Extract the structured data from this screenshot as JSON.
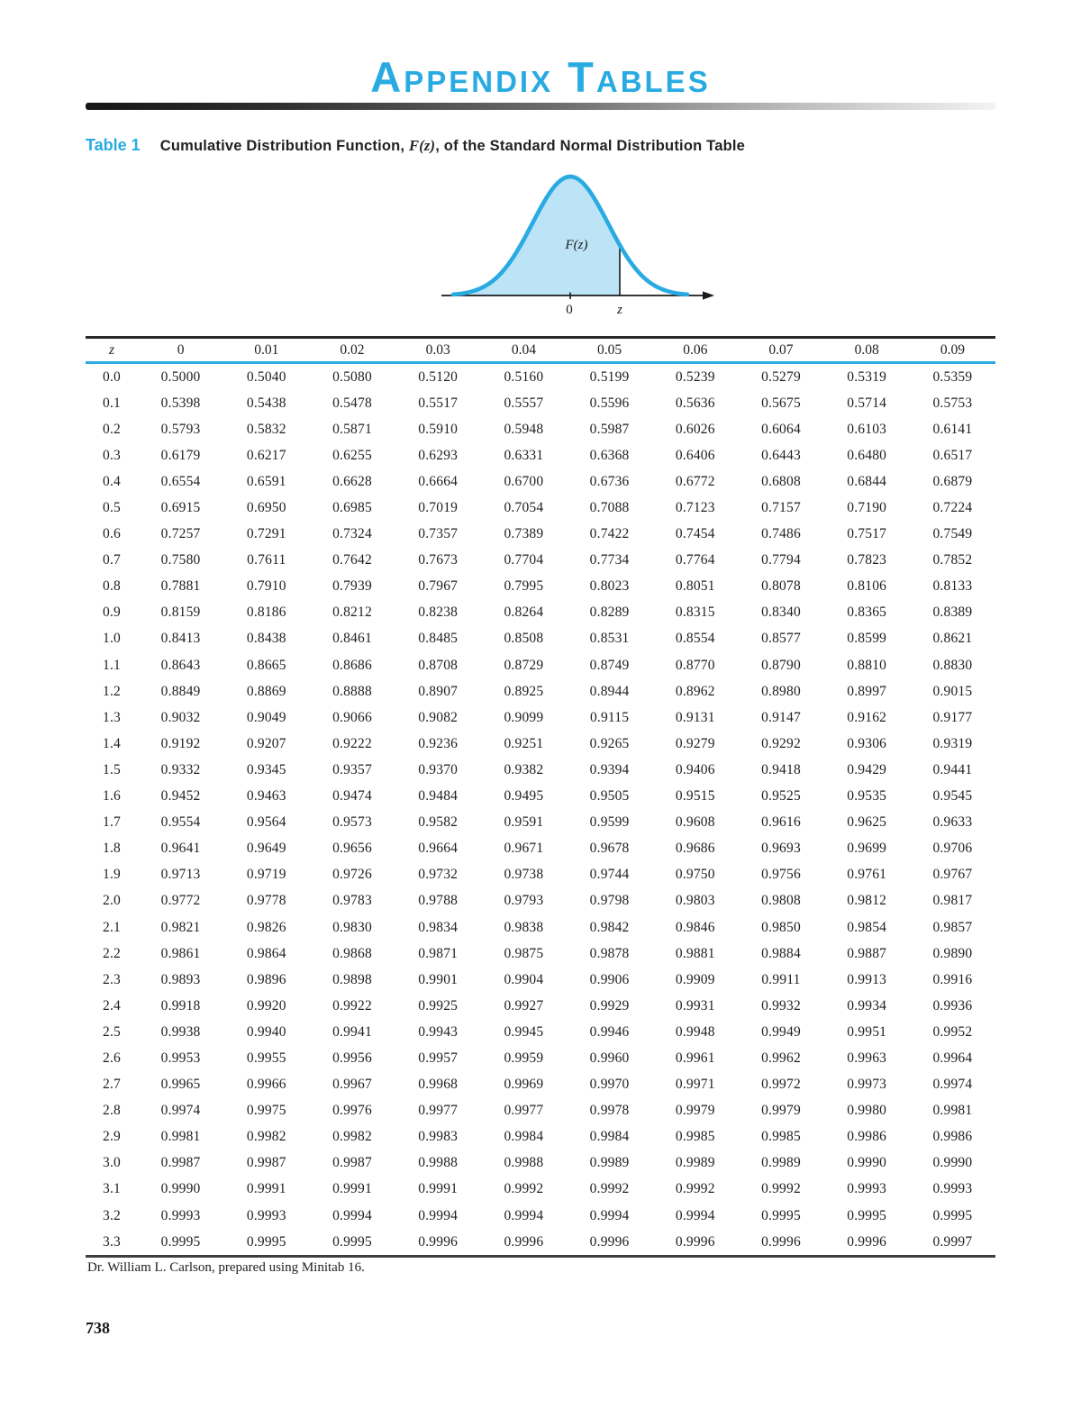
{
  "page": {
    "title": "Appendix Tables",
    "page_number": "738"
  },
  "table1": {
    "label": "Table 1",
    "caption_pre": "Cumulative Distribution Function, ",
    "caption_fz": "F(z)",
    "caption_post": ", of the Standard Normal Distribution Table",
    "figure": {
      "area_label": "F(z)",
      "zero_label": "0",
      "z_label": "z",
      "curve_color": "#29ABE2",
      "fill_color": "#bce3f6"
    },
    "col_headers": [
      "z",
      "0",
      "0.01",
      "0.02",
      "0.03",
      "0.04",
      "0.05",
      "0.06",
      "0.07",
      "0.08",
      "0.09"
    ],
    "rows": [
      [
        "0.0",
        "0.5000",
        "0.5040",
        "0.5080",
        "0.5120",
        "0.5160",
        "0.5199",
        "0.5239",
        "0.5279",
        "0.5319",
        "0.5359"
      ],
      [
        "0.1",
        "0.5398",
        "0.5438",
        "0.5478",
        "0.5517",
        "0.5557",
        "0.5596",
        "0.5636",
        "0.5675",
        "0.5714",
        "0.5753"
      ],
      [
        "0.2",
        "0.5793",
        "0.5832",
        "0.5871",
        "0.5910",
        "0.5948",
        "0.5987",
        "0.6026",
        "0.6064",
        "0.6103",
        "0.6141"
      ],
      [
        "0.3",
        "0.6179",
        "0.6217",
        "0.6255",
        "0.6293",
        "0.6331",
        "0.6368",
        "0.6406",
        "0.6443",
        "0.6480",
        "0.6517"
      ],
      [
        "0.4",
        "0.6554",
        "0.6591",
        "0.6628",
        "0.6664",
        "0.6700",
        "0.6736",
        "0.6772",
        "0.6808",
        "0.6844",
        "0.6879"
      ],
      [
        "0.5",
        "0.6915",
        "0.6950",
        "0.6985",
        "0.7019",
        "0.7054",
        "0.7088",
        "0.7123",
        "0.7157",
        "0.7190",
        "0.7224"
      ],
      [
        "0.6",
        "0.7257",
        "0.7291",
        "0.7324",
        "0.7357",
        "0.7389",
        "0.7422",
        "0.7454",
        "0.7486",
        "0.7517",
        "0.7549"
      ],
      [
        "0.7",
        "0.7580",
        "0.7611",
        "0.7642",
        "0.7673",
        "0.7704",
        "0.7734",
        "0.7764",
        "0.7794",
        "0.7823",
        "0.7852"
      ],
      [
        "0.8",
        "0.7881",
        "0.7910",
        "0.7939",
        "0.7967",
        "0.7995",
        "0.8023",
        "0.8051",
        "0.8078",
        "0.8106",
        "0.8133"
      ],
      [
        "0.9",
        "0.8159",
        "0.8186",
        "0.8212",
        "0.8238",
        "0.8264",
        "0.8289",
        "0.8315",
        "0.8340",
        "0.8365",
        "0.8389"
      ],
      [
        "1.0",
        "0.8413",
        "0.8438",
        "0.8461",
        "0.8485",
        "0.8508",
        "0.8531",
        "0.8554",
        "0.8577",
        "0.8599",
        "0.8621"
      ],
      [
        "1.1",
        "0.8643",
        "0.8665",
        "0.8686",
        "0.8708",
        "0.8729",
        "0.8749",
        "0.8770",
        "0.8790",
        "0.8810",
        "0.8830"
      ],
      [
        "1.2",
        "0.8849",
        "0.8869",
        "0.8888",
        "0.8907",
        "0.8925",
        "0.8944",
        "0.8962",
        "0.8980",
        "0.8997",
        "0.9015"
      ],
      [
        "1.3",
        "0.9032",
        "0.9049",
        "0.9066",
        "0.9082",
        "0.9099",
        "0.9115",
        "0.9131",
        "0.9147",
        "0.9162",
        "0.9177"
      ],
      [
        "1.4",
        "0.9192",
        "0.9207",
        "0.9222",
        "0.9236",
        "0.9251",
        "0.9265",
        "0.9279",
        "0.9292",
        "0.9306",
        "0.9319"
      ],
      [
        "1.5",
        "0.9332",
        "0.9345",
        "0.9357",
        "0.9370",
        "0.9382",
        "0.9394",
        "0.9406",
        "0.9418",
        "0.9429",
        "0.9441"
      ],
      [
        "1.6",
        "0.9452",
        "0.9463",
        "0.9474",
        "0.9484",
        "0.9495",
        "0.9505",
        "0.9515",
        "0.9525",
        "0.9535",
        "0.9545"
      ],
      [
        "1.7",
        "0.9554",
        "0.9564",
        "0.9573",
        "0.9582",
        "0.9591",
        "0.9599",
        "0.9608",
        "0.9616",
        "0.9625",
        "0.9633"
      ],
      [
        "1.8",
        "0.9641",
        "0.9649",
        "0.9656",
        "0.9664",
        "0.9671",
        "0.9678",
        "0.9686",
        "0.9693",
        "0.9699",
        "0.9706"
      ],
      [
        "1.9",
        "0.9713",
        "0.9719",
        "0.9726",
        "0.9732",
        "0.9738",
        "0.9744",
        "0.9750",
        "0.9756",
        "0.9761",
        "0.9767"
      ],
      [
        "2.0",
        "0.9772",
        "0.9778",
        "0.9783",
        "0.9788",
        "0.9793",
        "0.9798",
        "0.9803",
        "0.9808",
        "0.9812",
        "0.9817"
      ],
      [
        "2.1",
        "0.9821",
        "0.9826",
        "0.9830",
        "0.9834",
        "0.9838",
        "0.9842",
        "0.9846",
        "0.9850",
        "0.9854",
        "0.9857"
      ],
      [
        "2.2",
        "0.9861",
        "0.9864",
        "0.9868",
        "0.9871",
        "0.9875",
        "0.9878",
        "0.9881",
        "0.9884",
        "0.9887",
        "0.9890"
      ],
      [
        "2.3",
        "0.9893",
        "0.9896",
        "0.9898",
        "0.9901",
        "0.9904",
        "0.9906",
        "0.9909",
        "0.9911",
        "0.9913",
        "0.9916"
      ],
      [
        "2.4",
        "0.9918",
        "0.9920",
        "0.9922",
        "0.9925",
        "0.9927",
        "0.9929",
        "0.9931",
        "0.9932",
        "0.9934",
        "0.9936"
      ],
      [
        "2.5",
        "0.9938",
        "0.9940",
        "0.9941",
        "0.9943",
        "0.9945",
        "0.9946",
        "0.9948",
        "0.9949",
        "0.9951",
        "0.9952"
      ],
      [
        "2.6",
        "0.9953",
        "0.9955",
        "0.9956",
        "0.9957",
        "0.9959",
        "0.9960",
        "0.9961",
        "0.9962",
        "0.9963",
        "0.9964"
      ],
      [
        "2.7",
        "0.9965",
        "0.9966",
        "0.9967",
        "0.9968",
        "0.9969",
        "0.9970",
        "0.9971",
        "0.9972",
        "0.9973",
        "0.9974"
      ],
      [
        "2.8",
        "0.9974",
        "0.9975",
        "0.9976",
        "0.9977",
        "0.9977",
        "0.9978",
        "0.9979",
        "0.9979",
        "0.9980",
        "0.9981"
      ],
      [
        "2.9",
        "0.9981",
        "0.9982",
        "0.9982",
        "0.9983",
        "0.9984",
        "0.9984",
        "0.9985",
        "0.9985",
        "0.9986",
        "0.9986"
      ],
      [
        "3.0",
        "0.9987",
        "0.9987",
        "0.9987",
        "0.9988",
        "0.9988",
        "0.9989",
        "0.9989",
        "0.9989",
        "0.9990",
        "0.9990"
      ],
      [
        "3.1",
        "0.9990",
        "0.9991",
        "0.9991",
        "0.9991",
        "0.9992",
        "0.9992",
        "0.9992",
        "0.9992",
        "0.9993",
        "0.9993"
      ],
      [
        "3.2",
        "0.9993",
        "0.9993",
        "0.9994",
        "0.9994",
        "0.9994",
        "0.9994",
        "0.9994",
        "0.9995",
        "0.9995",
        "0.9995"
      ],
      [
        "3.3",
        "0.9995",
        "0.9995",
        "0.9995",
        "0.9996",
        "0.9996",
        "0.9996",
        "0.9996",
        "0.9996",
        "0.9996",
        "0.9997"
      ]
    ],
    "source": "Dr. William L. Carlson, prepared using Minitab 16."
  }
}
